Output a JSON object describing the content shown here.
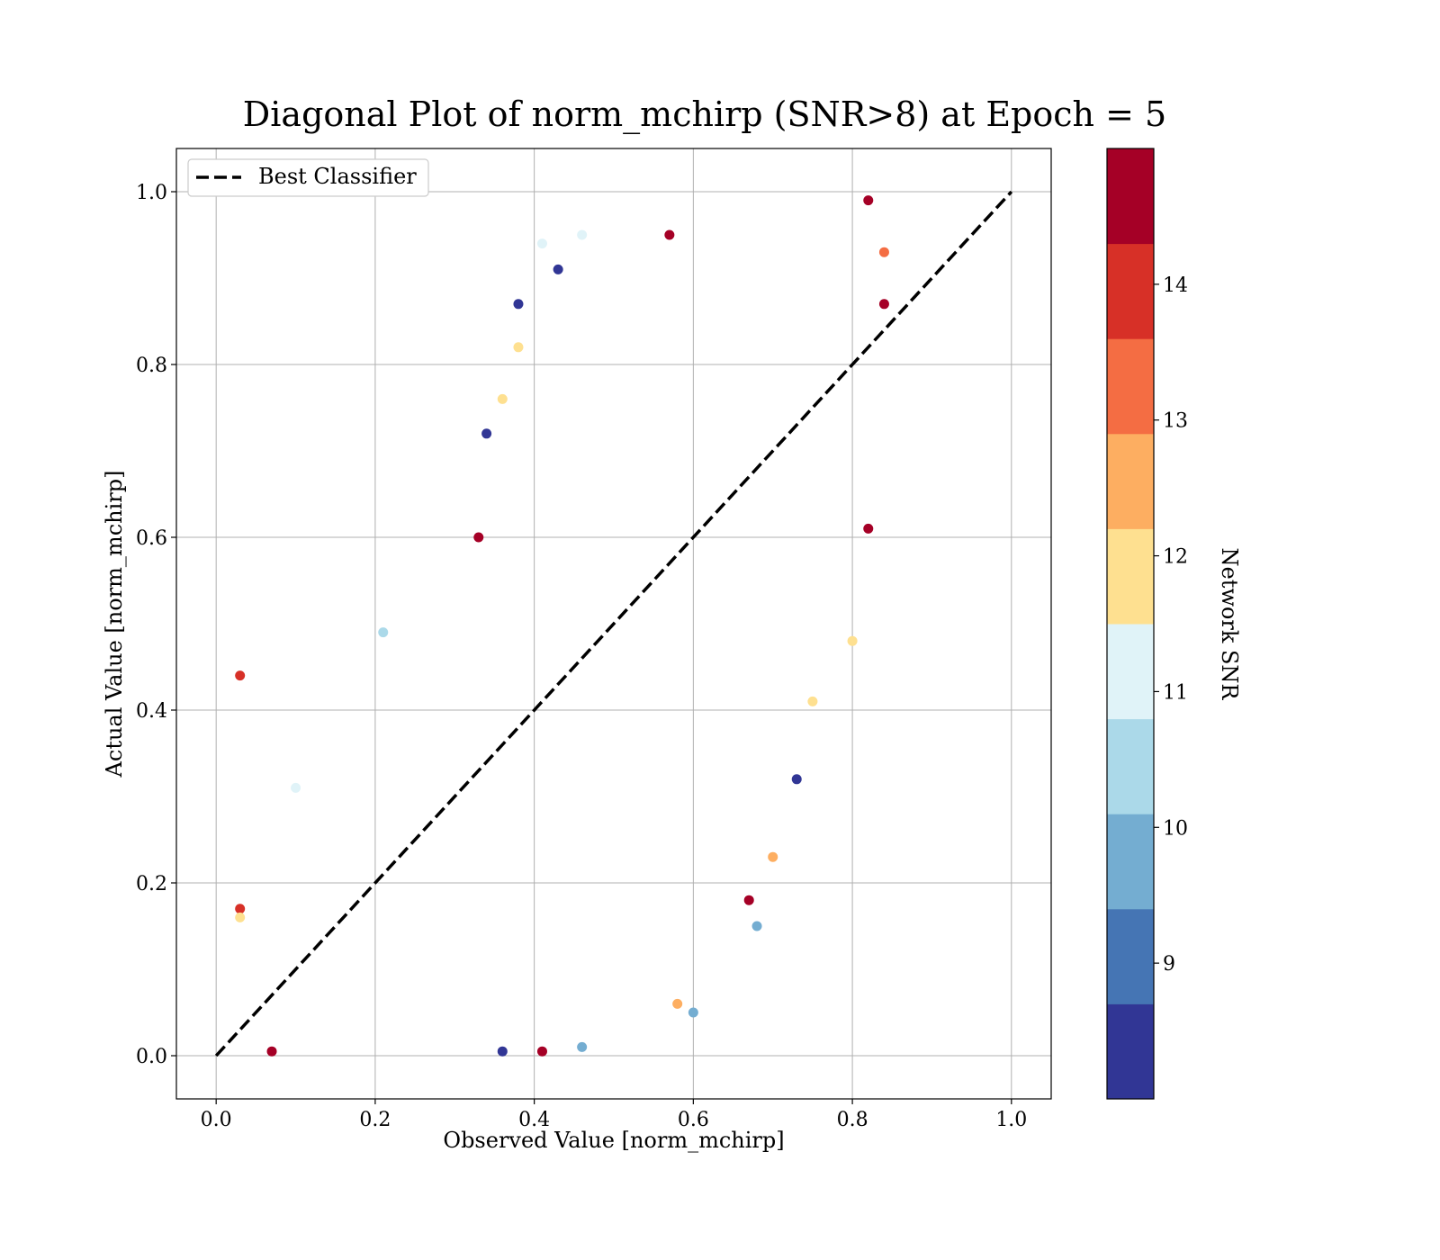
{
  "chart_data": {
    "type": "scatter",
    "title": "Diagonal Plot of norm_mchirp (SNR>8) at Epoch = 5",
    "xlabel": "Observed Value [norm_mchirp]",
    "ylabel": "Actual Value [norm_mchirp]",
    "xlim": [
      -0.05,
      1.05
    ],
    "ylim": [
      -0.05,
      1.05
    ],
    "xticks": [
      0.0,
      0.2,
      0.4,
      0.6,
      0.8,
      1.0
    ],
    "yticks": [
      0.0,
      0.2,
      0.4,
      0.6,
      0.8,
      1.0
    ],
    "xtick_labels": [
      "0.0",
      "0.2",
      "0.4",
      "0.6",
      "0.8",
      "1.0"
    ],
    "ytick_labels": [
      "0.0",
      "0.2",
      "0.4",
      "0.6",
      "0.8",
      "1.0"
    ],
    "grid": true,
    "legend": {
      "position": "top-left",
      "entries": [
        {
          "label": "Best Classifier",
          "style": "dashed",
          "color": "#000000"
        }
      ]
    },
    "reference_line": {
      "label": "Best Classifier",
      "x": [
        0.0,
        1.0
      ],
      "y": [
        0.0,
        1.0
      ]
    },
    "colorbar": {
      "label": "Network SNR",
      "range": [
        8.0,
        15.0
      ],
      "ticks": [
        9,
        10,
        11,
        12,
        13,
        14
      ],
      "tick_labels": [
        "9",
        "10",
        "11",
        "12",
        "13",
        "14"
      ],
      "bins": 10,
      "colors": [
        "#313695",
        "#4575b4",
        "#74add1",
        "#abd9e9",
        "#e0f3f8",
        "#fee090",
        "#fdae61",
        "#f46d43",
        "#d73027",
        "#a50026"
      ]
    },
    "series": [
      {
        "points": [
          {
            "x": 0.03,
            "y": 0.44,
            "snr": 14.2
          },
          {
            "x": 0.21,
            "y": 0.49,
            "snr": 10.5
          },
          {
            "x": 0.1,
            "y": 0.31,
            "snr": 11.0
          },
          {
            "x": 0.34,
            "y": 0.72,
            "snr": 8.3
          },
          {
            "x": 0.41,
            "y": 0.94,
            "snr": 10.8
          },
          {
            "x": 0.46,
            "y": 0.95,
            "snr": 11.0
          },
          {
            "x": 0.57,
            "y": 0.95,
            "snr": 14.5
          },
          {
            "x": 0.75,
            "y": 0.41,
            "snr": 12.0
          },
          {
            "x": 0.7,
            "y": 0.23,
            "snr": 12.5
          },
          {
            "x": 0.67,
            "y": 0.18,
            "snr": 14.6
          },
          {
            "x": 0.6,
            "y": 0.05,
            "snr": 9.8
          },
          {
            "x": 0.41,
            "y": 0.005,
            "snr": 14.5
          },
          {
            "x": 0.36,
            "y": 0.005,
            "snr": 8.4
          },
          {
            "x": 0.07,
            "y": 0.005,
            "snr": 14.8
          },
          {
            "x": 0.03,
            "y": 0.17,
            "snr": 14.0
          },
          {
            "x": 0.03,
            "y": 0.16,
            "snr": 12.0
          },
          {
            "x": 0.82,
            "y": 0.99,
            "snr": 14.8
          },
          {
            "x": 0.84,
            "y": 0.93,
            "snr": 13.0
          },
          {
            "x": 0.84,
            "y": 0.87,
            "snr": 14.8
          },
          {
            "x": 0.82,
            "y": 0.61,
            "snr": 14.5
          },
          {
            "x": 0.8,
            "y": 0.48,
            "snr": 11.5
          },
          {
            "x": 0.73,
            "y": 0.32,
            "snr": 8.5
          },
          {
            "x": 0.68,
            "y": 0.15,
            "snr": 9.5
          },
          {
            "x": 0.58,
            "y": 0.06,
            "snr": 12.5
          },
          {
            "x": 0.46,
            "y": 0.01,
            "snr": 9.8
          },
          {
            "x": 0.38,
            "y": 0.87,
            "snr": 8.4
          },
          {
            "x": 0.38,
            "y": 0.82,
            "snr": 12.0
          },
          {
            "x": 0.43,
            "y": 0.91,
            "snr": 8.5
          },
          {
            "x": 0.36,
            "y": 0.76,
            "snr": 11.5
          },
          {
            "x": 0.33,
            "y": 0.6,
            "snr": 14.5
          }
        ]
      }
    ]
  }
}
